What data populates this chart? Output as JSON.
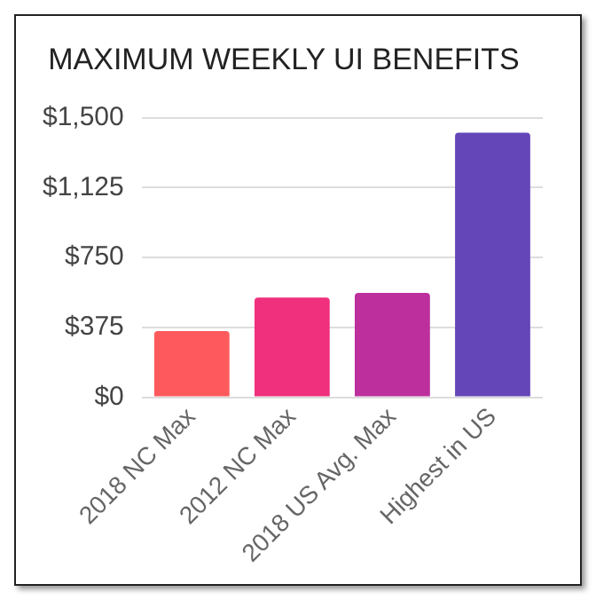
{
  "chart_data": {
    "type": "bar",
    "title": "MAXIMUM WEEKLY UI BENEFITS",
    "categories": [
      "2018 NC Max",
      "2012 NC Max",
      "2018 US Avg. Max",
      "Highest in US"
    ],
    "values": [
      355,
      535,
      560,
      1420
    ],
    "colors": [
      "#fe5a5d",
      "#f0307d",
      "#bc2f9d",
      "#6446b8"
    ],
    "ylim": [
      0,
      1500
    ],
    "yticks": [
      {
        "value": 0,
        "label": "$0"
      },
      {
        "value": 375,
        "label": "$375"
      },
      {
        "value": 750,
        "label": "$750"
      },
      {
        "value": 1125,
        "label": "$1,125"
      },
      {
        "value": 1500,
        "label": "$1,500"
      }
    ],
    "grid": "y"
  }
}
